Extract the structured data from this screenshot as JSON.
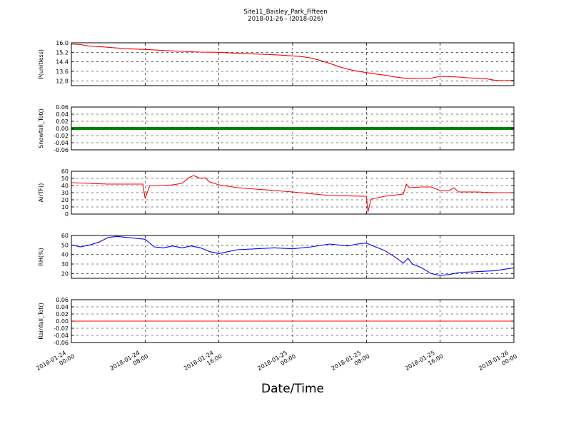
{
  "figure": {
    "title": "Site11_Baisley_Park_Fifteen",
    "subtitle": "2018-01-26 - (2018-026)",
    "xlabel": "Date/Time"
  },
  "chart_data": {
    "type": "line",
    "grid": true,
    "x_axis": {
      "type": "datetime",
      "range": [
        "2018-01-24 00:00",
        "2018-01-26 00:00"
      ],
      "ticks": [
        "2018-01-24 00:00",
        "2018-01-24 08:00",
        "2018-01-24 16:00",
        "2018-01-25 00:00",
        "2018-01-25 08:00",
        "2018-01-25 16:00",
        "2018-01-26 00:00"
      ],
      "tick_labels": [
        [
          "2018-01-24",
          "00:00"
        ],
        [
          "2018-01-24",
          "08:00"
        ],
        [
          "2018-01-24",
          "16:00"
        ],
        [
          "2018-01-25",
          "00:00"
        ],
        [
          "2018-01-25",
          "08:00"
        ],
        [
          "2018-01-25",
          "16:00"
        ],
        [
          "2018-01-26",
          "00:00"
        ]
      ]
    },
    "panels": [
      {
        "ylabel": "P(unitless)",
        "ylim": [
          12.4,
          16.0
        ],
        "yticks": [
          "16.0",
          "15.2",
          "14.4",
          "13.6",
          "12.8"
        ],
        "ytick_values": [
          16.0,
          15.2,
          14.4,
          13.6,
          12.8
        ],
        "color": "#ff0000",
        "points": [
          [
            "2018-01-24 00:00",
            15.9
          ],
          [
            "2018-01-24 01:00",
            15.85
          ],
          [
            "2018-01-24 02:00",
            15.72
          ],
          [
            "2018-01-24 03:00",
            15.68
          ],
          [
            "2018-01-24 04:00",
            15.62
          ],
          [
            "2018-01-24 05:00",
            15.56
          ],
          [
            "2018-01-24 06:00",
            15.5
          ],
          [
            "2018-01-24 08:00",
            15.44
          ],
          [
            "2018-01-24 10:00",
            15.36
          ],
          [
            "2018-01-24 12:00",
            15.28
          ],
          [
            "2018-01-24 14:00",
            15.22
          ],
          [
            "2018-01-24 16:00",
            15.2
          ],
          [
            "2018-01-24 18:00",
            15.12
          ],
          [
            "2018-01-24 20:00",
            15.06
          ],
          [
            "2018-01-24 22:00",
            15.0
          ],
          [
            "2018-01-25 00:00",
            14.9
          ],
          [
            "2018-01-25 01:00",
            14.84
          ],
          [
            "2018-01-25 02:00",
            14.72
          ],
          [
            "2018-01-25 03:00",
            14.52
          ],
          [
            "2018-01-25 04:00",
            14.28
          ],
          [
            "2018-01-25 05:00",
            14.0
          ],
          [
            "2018-01-25 06:00",
            13.78
          ],
          [
            "2018-01-25 07:00",
            13.62
          ],
          [
            "2018-01-25 08:00",
            13.5
          ],
          [
            "2018-01-25 09:00",
            13.38
          ],
          [
            "2018-01-25 10:00",
            13.28
          ],
          [
            "2018-01-25 11:00",
            13.14
          ],
          [
            "2018-01-25 12:00",
            13.04
          ],
          [
            "2018-01-25 13:00",
            12.98
          ],
          [
            "2018-01-25 14:00",
            13.0
          ],
          [
            "2018-01-25 15:00",
            13.02
          ],
          [
            "2018-01-25 16:00",
            13.18
          ],
          [
            "2018-01-25 17:00",
            13.16
          ],
          [
            "2018-01-25 18:00",
            13.12
          ],
          [
            "2018-01-25 19:00",
            13.06
          ],
          [
            "2018-01-25 20:00",
            13.02
          ],
          [
            "2018-01-25 21:00",
            12.98
          ],
          [
            "2018-01-25 22:00",
            12.84
          ],
          [
            "2018-01-25 23:00",
            12.82
          ],
          [
            "2018-01-26 00:00",
            12.84
          ]
        ]
      },
      {
        "ylabel": "Snowfall_Tot()",
        "ylim": [
          -0.06,
          0.06
        ],
        "yticks": [
          "0.06",
          "0.04",
          "0.02",
          "0.00",
          "-0.02",
          "-0.04",
          "-0.06"
        ],
        "ytick_values": [
          0.06,
          0.04,
          0.02,
          0.0,
          -0.02,
          -0.04,
          -0.06
        ],
        "color": "#008000",
        "thick": true,
        "points": [
          [
            "2018-01-24 00:00",
            0.0
          ],
          [
            "2018-01-26 00:00",
            0.0
          ]
        ]
      },
      {
        "ylabel": "AirTF()",
        "ylim": [
          0,
          60
        ],
        "yticks": [
          "60",
          "50",
          "40",
          "30",
          "20",
          "10",
          "0"
        ],
        "ytick_values": [
          60,
          50,
          40,
          30,
          20,
          10,
          0
        ],
        "color": "#ff0000",
        "points": [
          [
            "2018-01-24 00:00",
            44
          ],
          [
            "2018-01-24 02:00",
            43
          ],
          [
            "2018-01-24 04:00",
            42
          ],
          [
            "2018-01-24 06:00",
            42
          ],
          [
            "2018-01-24 07:45",
            42
          ],
          [
            "2018-01-24 08:00",
            22
          ],
          [
            "2018-01-24 08:30",
            40
          ],
          [
            "2018-01-24 10:00",
            40
          ],
          [
            "2018-01-24 11:00",
            41
          ],
          [
            "2018-01-24 12:00",
            43
          ],
          [
            "2018-01-24 12:45",
            51
          ],
          [
            "2018-01-24 13:15",
            54
          ],
          [
            "2018-01-24 14:00",
            50
          ],
          [
            "2018-01-24 14:30",
            51
          ],
          [
            "2018-01-24 15:00",
            45
          ],
          [
            "2018-01-24 16:00",
            41
          ],
          [
            "2018-01-24 18:00",
            37
          ],
          [
            "2018-01-24 20:00",
            35
          ],
          [
            "2018-01-25 00:00",
            31
          ],
          [
            "2018-01-25 04:00",
            26
          ],
          [
            "2018-01-25 08:00",
            25
          ],
          [
            "2018-01-25 08:10",
            3
          ],
          [
            "2018-01-25 08:30",
            21
          ],
          [
            "2018-01-25 10:00",
            25
          ],
          [
            "2018-01-25 12:00",
            28
          ],
          [
            "2018-01-25 12:20",
            42
          ],
          [
            "2018-01-25 12:40",
            37
          ],
          [
            "2018-01-25 14:00",
            38
          ],
          [
            "2018-01-25 15:00",
            38
          ],
          [
            "2018-01-25 16:00",
            33
          ],
          [
            "2018-01-25 17:00",
            33
          ],
          [
            "2018-01-25 17:30",
            37
          ],
          [
            "2018-01-25 18:00",
            31
          ],
          [
            "2018-01-25 20:00",
            31
          ],
          [
            "2018-01-25 22:00",
            30
          ],
          [
            "2018-01-26 00:00",
            30
          ]
        ]
      },
      {
        "ylabel": "RH(%)",
        "ylim": [
          15,
          60
        ],
        "yticks": [
          "60",
          "50",
          "40",
          "30",
          "20"
        ],
        "ytick_values": [
          60,
          50,
          40,
          30,
          20
        ],
        "color": "#0000ff",
        "points": [
          [
            "2018-01-24 00:00",
            50
          ],
          [
            "2018-01-24 01:00",
            48
          ],
          [
            "2018-01-24 02:00",
            50
          ],
          [
            "2018-01-24 03:00",
            53
          ],
          [
            "2018-01-24 04:00",
            58
          ],
          [
            "2018-01-24 05:00",
            59
          ],
          [
            "2018-01-24 06:00",
            58
          ],
          [
            "2018-01-24 07:00",
            57
          ],
          [
            "2018-01-24 08:00",
            56
          ],
          [
            "2018-01-24 09:00",
            48
          ],
          [
            "2018-01-24 10:00",
            47
          ],
          [
            "2018-01-24 11:00",
            49
          ],
          [
            "2018-01-24 12:00",
            47
          ],
          [
            "2018-01-24 13:00",
            49
          ],
          [
            "2018-01-24 14:00",
            47
          ],
          [
            "2018-01-24 15:00",
            43
          ],
          [
            "2018-01-24 16:00",
            41
          ],
          [
            "2018-01-24 17:00",
            43
          ],
          [
            "2018-01-24 18:00",
            45
          ],
          [
            "2018-01-24 20:00",
            46
          ],
          [
            "2018-01-24 22:00",
            47
          ],
          [
            "2018-01-25 00:00",
            46
          ],
          [
            "2018-01-25 02:00",
            48
          ],
          [
            "2018-01-25 04:00",
            51
          ],
          [
            "2018-01-25 06:00",
            49
          ],
          [
            "2018-01-25 07:00",
            51
          ],
          [
            "2018-01-25 08:00",
            52
          ],
          [
            "2018-01-25 09:00",
            48
          ],
          [
            "2018-01-25 10:00",
            44
          ],
          [
            "2018-01-25 11:00",
            38
          ],
          [
            "2018-01-25 12:00",
            31
          ],
          [
            "2018-01-25 12:30",
            36
          ],
          [
            "2018-01-25 13:00",
            30
          ],
          [
            "2018-01-25 14:00",
            26
          ],
          [
            "2018-01-25 15:00",
            20
          ],
          [
            "2018-01-25 16:00",
            18
          ],
          [
            "2018-01-25 17:00",
            19
          ],
          [
            "2018-01-25 18:00",
            21
          ],
          [
            "2018-01-25 20:00",
            22
          ],
          [
            "2018-01-25 22:00",
            23
          ],
          [
            "2018-01-26 00:00",
            26
          ]
        ]
      },
      {
        "ylabel": "Rainfall_Tot()",
        "ylim": [
          -0.06,
          0.06
        ],
        "yticks": [
          "0.06",
          "0.04",
          "0.02",
          "0.00",
          "-0.02",
          "-0.04",
          "-0.06"
        ],
        "ytick_values": [
          0.06,
          0.04,
          0.02,
          0.0,
          -0.02,
          -0.04,
          -0.06
        ],
        "color": "#ff0000",
        "points": [
          [
            "2018-01-24 00:00",
            0.0
          ],
          [
            "2018-01-26 00:00",
            0.0
          ]
        ]
      }
    ]
  }
}
